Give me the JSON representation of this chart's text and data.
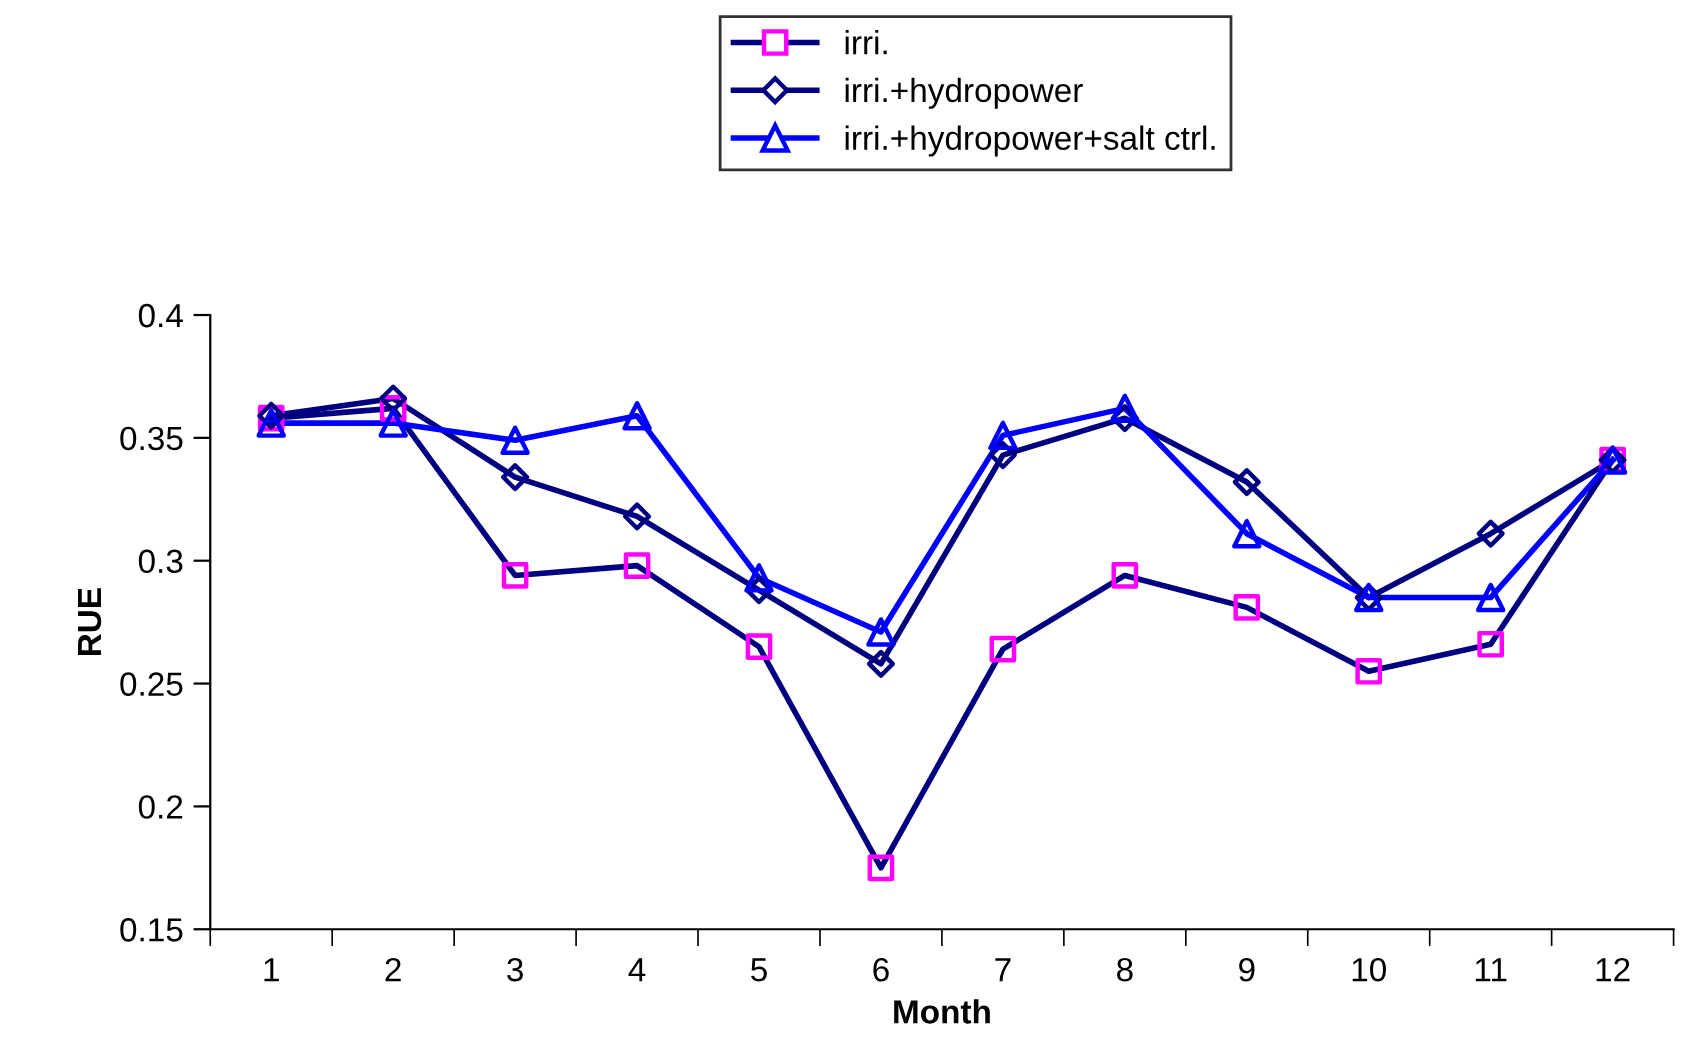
{
  "chart_data": {
    "type": "line",
    "xlabel": "Month",
    "ylabel": "RUE",
    "categories": [
      "1",
      "2",
      "3",
      "4",
      "5",
      "6",
      "7",
      "8",
      "9",
      "10",
      "11",
      "12"
    ],
    "series": [
      {
        "name": "irri.",
        "color": "#000080",
        "colors": [
          "#ff00ff",
          "#ff00ff",
          "#ff00ff",
          "#ff00ff",
          "#ff00ff",
          "#ff00ff",
          "#ff00ff",
          "#ff00ff",
          "#ff00ff",
          "#ff00ff",
          "#ff00ff",
          "#ff00ff"
        ],
        "marker": "square",
        "values": [
          0.358,
          0.362,
          0.294,
          0.298,
          0.265,
          0.175,
          0.264,
          0.294,
          0.281,
          0.255,
          0.266,
          0.341
        ]
      },
      {
        "name": "irri.+hydropower",
        "color": "#000080",
        "marker": "diamond",
        "values": [
          0.359,
          0.366,
          0.334,
          0.318,
          0.288,
          0.258,
          0.343,
          0.358,
          0.332,
          0.285,
          0.311,
          0.341
        ]
      },
      {
        "name": "irri.+hydropower+salt ctrl.",
        "color": "#0000ff",
        "marker": "triangle",
        "values": [
          0.356,
          0.356,
          0.349,
          0.359,
          0.293,
          0.271,
          0.351,
          0.362,
          0.311,
          0.285,
          0.285,
          0.341
        ]
      }
    ],
    "ylim": [
      0.15,
      0.4
    ],
    "yticks": [
      0.15,
      0.2,
      0.25,
      0.3,
      0.35,
      0.4
    ],
    "grid": false,
    "legend": "top"
  }
}
